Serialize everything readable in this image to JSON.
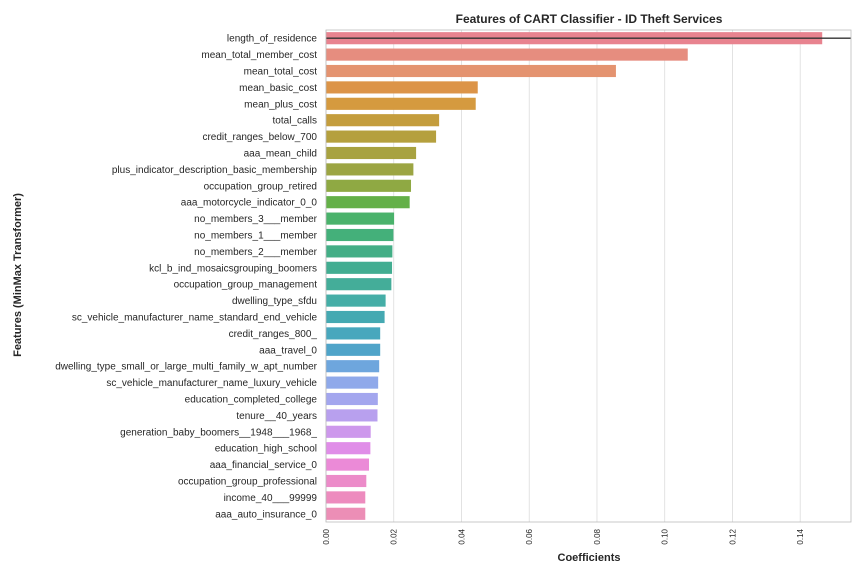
{
  "chart_data": {
    "type": "bar",
    "orientation": "horizontal",
    "title": "Features of CART Classifier - ID Theft Services",
    "xlabel": "Coefficients",
    "ylabel": "Features (MinMax Transformer)",
    "xlim": [
      0,
      0.155
    ],
    "xticks": [
      "0.00",
      "0.02",
      "0.04",
      "0.06",
      "0.08",
      "0.10",
      "0.12",
      "0.14"
    ],
    "grid": true,
    "reference_line": "horizontal line at length_of_residence",
    "categories": [
      "length_of_residence",
      "mean_total_member_cost",
      "mean_total_cost",
      "mean_basic_cost",
      "mean_plus_cost",
      "total_calls",
      "credit_ranges_below_700",
      "aaa_mean_child",
      "plus_indicator_description_basic_membership",
      "occupation_group_retired",
      "aaa_motorcycle_indicator_0_0",
      "no_members_3___member",
      "no_members_1___member",
      "no_members_2___member",
      "kcl_b_ind_mosaicsgrouping_boomers",
      "occupation_group_management",
      "dwelling_type_sfdu",
      "sc_vehicle_manufacturer_name_standard_end_vehicle",
      "credit_ranges_800_",
      "aaa_travel_0",
      "dwelling_type_small_or_large_multi_family_w_apt_number",
      "sc_vehicle_manufacturer_name_luxury_vehicle",
      "education_completed_college",
      "tenure__40_years",
      "generation_baby_boomers__1948___1968_",
      "education_high_school",
      "aaa_financial_service_0",
      "occupation_group_professional",
      "income_40___99999",
      "aaa_auto_insurance_0"
    ],
    "values": [
      0.1465,
      0.1068,
      0.0856,
      0.0448,
      0.0442,
      0.0334,
      0.0325,
      0.0266,
      0.0258,
      0.0251,
      0.0247,
      0.0201,
      0.0199,
      0.0196,
      0.0195,
      0.0193,
      0.0176,
      0.0173,
      0.016,
      0.016,
      0.0157,
      0.0154,
      0.0153,
      0.0152,
      0.0132,
      0.0131,
      0.0127,
      0.0119,
      0.0116,
      0.0116
    ],
    "colors": [
      "#e8838f",
      "#e68d7f",
      "#e49370",
      "#dc9448",
      "#d59a3f",
      "#c49d3d",
      "#b5a03e",
      "#a8a240",
      "#9ca543",
      "#8fa943",
      "#64b048",
      "#4ab26b",
      "#44b07a",
      "#43ae86",
      "#42ad91",
      "#44ad99",
      "#45aea7",
      "#45a9b2",
      "#48a7bd",
      "#4fa4c9",
      "#6ea6dd",
      "#8fa9ea",
      "#a3a6ee",
      "#b8a0ee",
      "#cd98ec",
      "#e08de8",
      "#eb8ad7",
      "#ec8bc9",
      "#ed8bbe",
      "#ec8eb6"
    ]
  }
}
